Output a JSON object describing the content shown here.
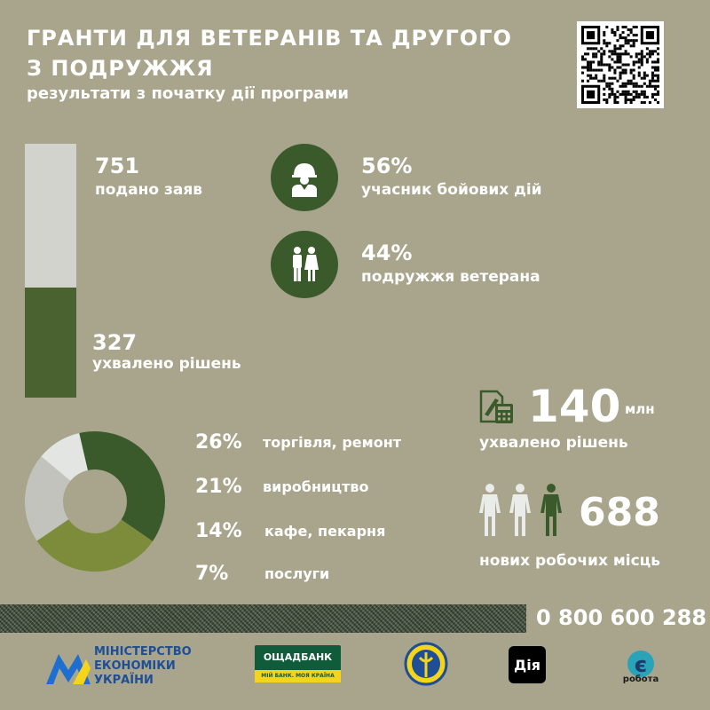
{
  "header": {
    "title_line1": "ГРАНТИ ДЛЯ ВЕТЕРАНІВ ТА ДРУГОГО",
    "title_line2": "З ПОДРУЖЖЯ",
    "subtitle": "результати з початку дії програми"
  },
  "applications": {
    "filed_value": "751",
    "filed_label": "подано заяв",
    "approved_value": "327",
    "approved_label": "ухвалено рішень",
    "approved_fraction": 0.435
  },
  "applicants": [
    {
      "percent": "56%",
      "label": "учасник бойових дій",
      "icon": "soldier-icon"
    },
    {
      "percent": "44%",
      "label": "подружжя ветерана",
      "icon": "couple-icon"
    }
  ],
  "money": {
    "value": "140",
    "unit": "млн",
    "label": "ухвалено рішень",
    "icon": "calculator-document-icon"
  },
  "jobs": {
    "value": "688",
    "label": "нових робочих місць",
    "icon": "people-icon"
  },
  "categories": [
    {
      "percent": "26%",
      "value": 26,
      "label": "торгівля, ремонт",
      "color": "#3b5a2c"
    },
    {
      "percent": "21%",
      "value": 21,
      "label": "виробництво",
      "color": "#7c8c3a"
    },
    {
      "percent": "14%",
      "value": 14,
      "label": "кафе, пекарня",
      "color": "#c3c3bd"
    },
    {
      "percent": "7%",
      "value": 7,
      "label": "послуги",
      "color": "#e2e5e1"
    }
  ],
  "footer": {
    "phone": "0 800 600 288",
    "ministry_line1": "МІНІСТЕРСТВО",
    "ministry_line2": "ЕКОНОМІКИ",
    "ministry_line3": "УКРАЇНИ",
    "bank_name": "ОЩАДБАНК",
    "bank_slogan": "МІЙ БАНК. МОЯ КРАЇНА",
    "diia": "Дія",
    "erobota": "робота",
    "erobota_letter": "є"
  },
  "colors": {
    "background": "#a8a58c",
    "dark_green": "#3b5a2c",
    "bar_green": "#4a6130",
    "bar_light": "#d3d3cd"
  }
}
